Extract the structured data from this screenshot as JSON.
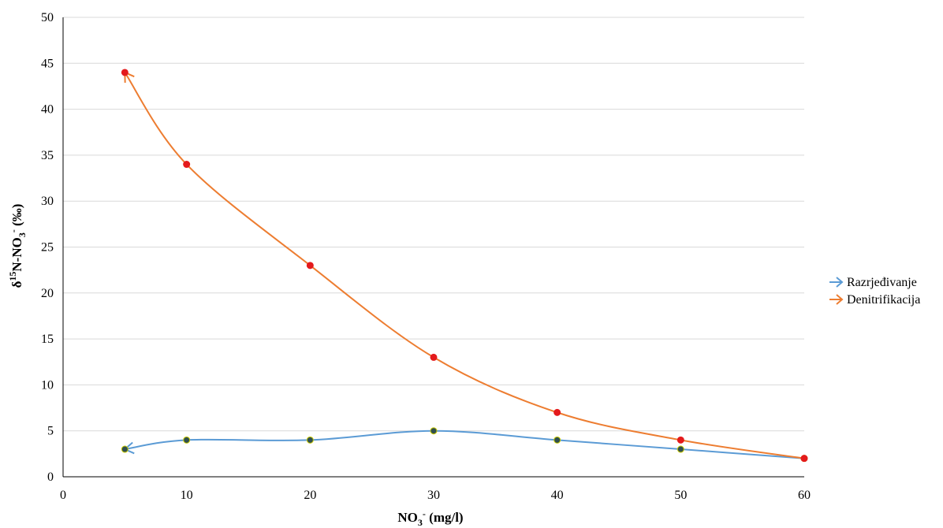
{
  "chart_data": {
    "type": "line",
    "title": "",
    "xlabel": {
      "base": "NO",
      "sub": "3",
      "sup": "-",
      "rest": " (mg/l)"
    },
    "ylabel": {
      "pre": "δ",
      "sup1": "15",
      "mid": "N-NO",
      "sub": "3",
      "sup2": "-",
      "rest": " (‰)"
    },
    "xlim": [
      0,
      60
    ],
    "ylim": [
      0,
      50
    ],
    "xticks": [
      0,
      10,
      20,
      30,
      40,
      50,
      60
    ],
    "yticks": [
      0,
      5,
      10,
      15,
      20,
      25,
      30,
      35,
      40,
      45,
      50
    ],
    "grid": "horizontal",
    "legend_position": "right",
    "smooth": true,
    "arrow_at_start": true,
    "series": [
      {
        "name": "Razrjeđivanje",
        "color": "#5b9bd5",
        "marker_color": "#2f4f4f",
        "marker_edge": "#c9c900",
        "x": [
          5,
          10,
          20,
          30,
          40,
          50,
          60
        ],
        "y": [
          3,
          4,
          4,
          5,
          4,
          3,
          2
        ]
      },
      {
        "name": "Denitrifikacija",
        "color": "#ed7d31",
        "marker_color": "#e41a1c",
        "marker_edge": "#e41a1c",
        "x": [
          5,
          10,
          20,
          30,
          40,
          50,
          60
        ],
        "y": [
          44,
          34,
          23,
          13,
          7,
          4,
          2
        ]
      }
    ]
  }
}
